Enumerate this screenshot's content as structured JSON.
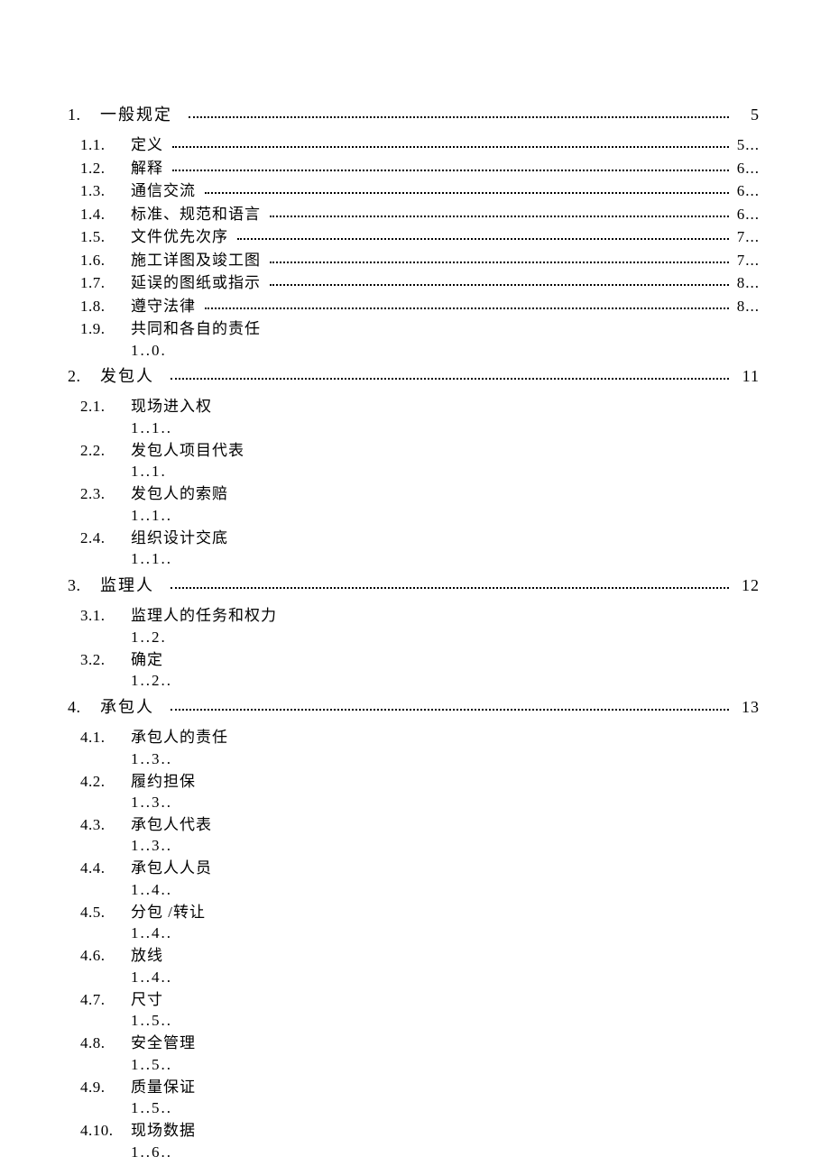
{
  "toc": [
    {
      "num": "1.",
      "title": "一般规定",
      "page": "5",
      "children": [
        {
          "num": "1.1.",
          "title": "定义",
          "page": "5...",
          "dotted": true
        },
        {
          "num": "1.2.",
          "title": "解释",
          "page": "6...",
          "dotted": true
        },
        {
          "num": "1.3.",
          "title": "通信交流",
          "page": "6...",
          "dotted": true
        },
        {
          "num": "1.4.",
          "title": "标准、规范和语言",
          "page": "6...",
          "dotted": true
        },
        {
          "num": "1.5.",
          "title": "文件优先次序",
          "page": "7...",
          "dotted": true
        },
        {
          "num": "1.6.",
          "title": "施工详图及竣工图",
          "page": "7...",
          "dotted": true
        },
        {
          "num": "1.7.",
          "title": "延误的图纸或指示",
          "page": "8...",
          "dotted": true
        },
        {
          "num": "1.8.",
          "title": "遵守法律",
          "page": "8...",
          "dotted": true
        },
        {
          "num": "1.9.",
          "title": "共同和各自的责任",
          "subpage": "1..0.",
          "dotted": false
        }
      ]
    },
    {
      "num": "2.",
      "title": "发包人",
      "page": "11",
      "children": [
        {
          "num": "2.1.",
          "title": "现场进入权",
          "subpage": "1..1..",
          "dotted": false
        },
        {
          "num": "2.2.",
          "title": "发包人项目代表",
          "subpage": "1..1.",
          "dotted": false
        },
        {
          "num": "2.3.",
          "title": "发包人的索赔",
          "subpage": "1..1..",
          "dotted": false
        },
        {
          "num": "2.4.",
          "title": "组织设计交底",
          "subpage": "1..1..",
          "dotted": false
        }
      ]
    },
    {
      "num": "3.",
      "title": "监理人",
      "page": "12",
      "children": [
        {
          "num": "3.1.",
          "title": "监理人的任务和权力",
          "subpage": "1..2.",
          "dotted": false
        },
        {
          "num": "3.2.",
          "title": "确定",
          "subpage": "1..2..",
          "dotted": false
        }
      ]
    },
    {
      "num": "4.",
      "title": "承包人",
      "page": "13",
      "children": [
        {
          "num": "4.1.",
          "title": "承包人的责任",
          "subpage": "1..3..",
          "dotted": false
        },
        {
          "num": "4.2.",
          "title": "履约担保",
          "subpage": "1..3..",
          "dotted": false
        },
        {
          "num": "4.3.",
          "title": "承包人代表",
          "subpage": "1..3..",
          "dotted": false
        },
        {
          "num": "4.4.",
          "title": "承包人人员",
          "subpage": "1..4..",
          "dotted": false
        },
        {
          "num": "4.5.",
          "title": "分包 /转让",
          "subpage": "1..4..",
          "dotted": false
        },
        {
          "num": "4.6.",
          "title": "放线",
          "subpage": "1..4..",
          "dotted": false
        },
        {
          "num": "4.7.",
          "title": "尺寸",
          "subpage": "1..5..",
          "dotted": false
        },
        {
          "num": "4.8.",
          "title": "安全管理",
          "subpage": "1..5..",
          "dotted": false
        },
        {
          "num": "4.9.",
          "title": "质量保证",
          "subpage": "1..5..",
          "dotted": false
        },
        {
          "num": "4.10.",
          "title": "现场数据",
          "subpage": "1..6..",
          "dotted": false
        }
      ]
    }
  ]
}
